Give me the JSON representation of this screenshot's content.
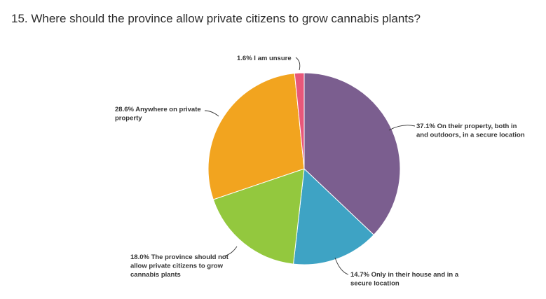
{
  "question": {
    "title": "15. Where should the province allow private citizens to grow cannabis plants?"
  },
  "chart_data": {
    "type": "pie",
    "title": "15. Where should the province allow private citizens to grow cannabis plants?",
    "slices": [
      {
        "label": "On their property, both in and outdoors, in a secure location",
        "value": 37.1,
        "display": [
          "37.1% On their property, both in",
          "and outdoors, in a secure location"
        ],
        "color": "#7b5e8f"
      },
      {
        "label": "Only in their house and in a secure location",
        "value": 14.7,
        "display": [
          "14.7% Only in their house and in a",
          "secure location"
        ],
        "color": "#3ea3c4"
      },
      {
        "label": "The province should not allow private citizens to grow cannabis plants",
        "value": 18.0,
        "display": [
          "18.0% The province should not",
          "allow private citizens to grow",
          "cannabis plants"
        ],
        "color": "#93c83e"
      },
      {
        "label": "Anywhere on private property",
        "value": 28.6,
        "display": [
          "28.6% Anywhere on private",
          "property"
        ],
        "color": "#f2a41f"
      },
      {
        "label": "I am unsure",
        "value": 1.6,
        "display": [
          "1.6% I am unsure"
        ],
        "color": "#e8577a"
      }
    ]
  }
}
